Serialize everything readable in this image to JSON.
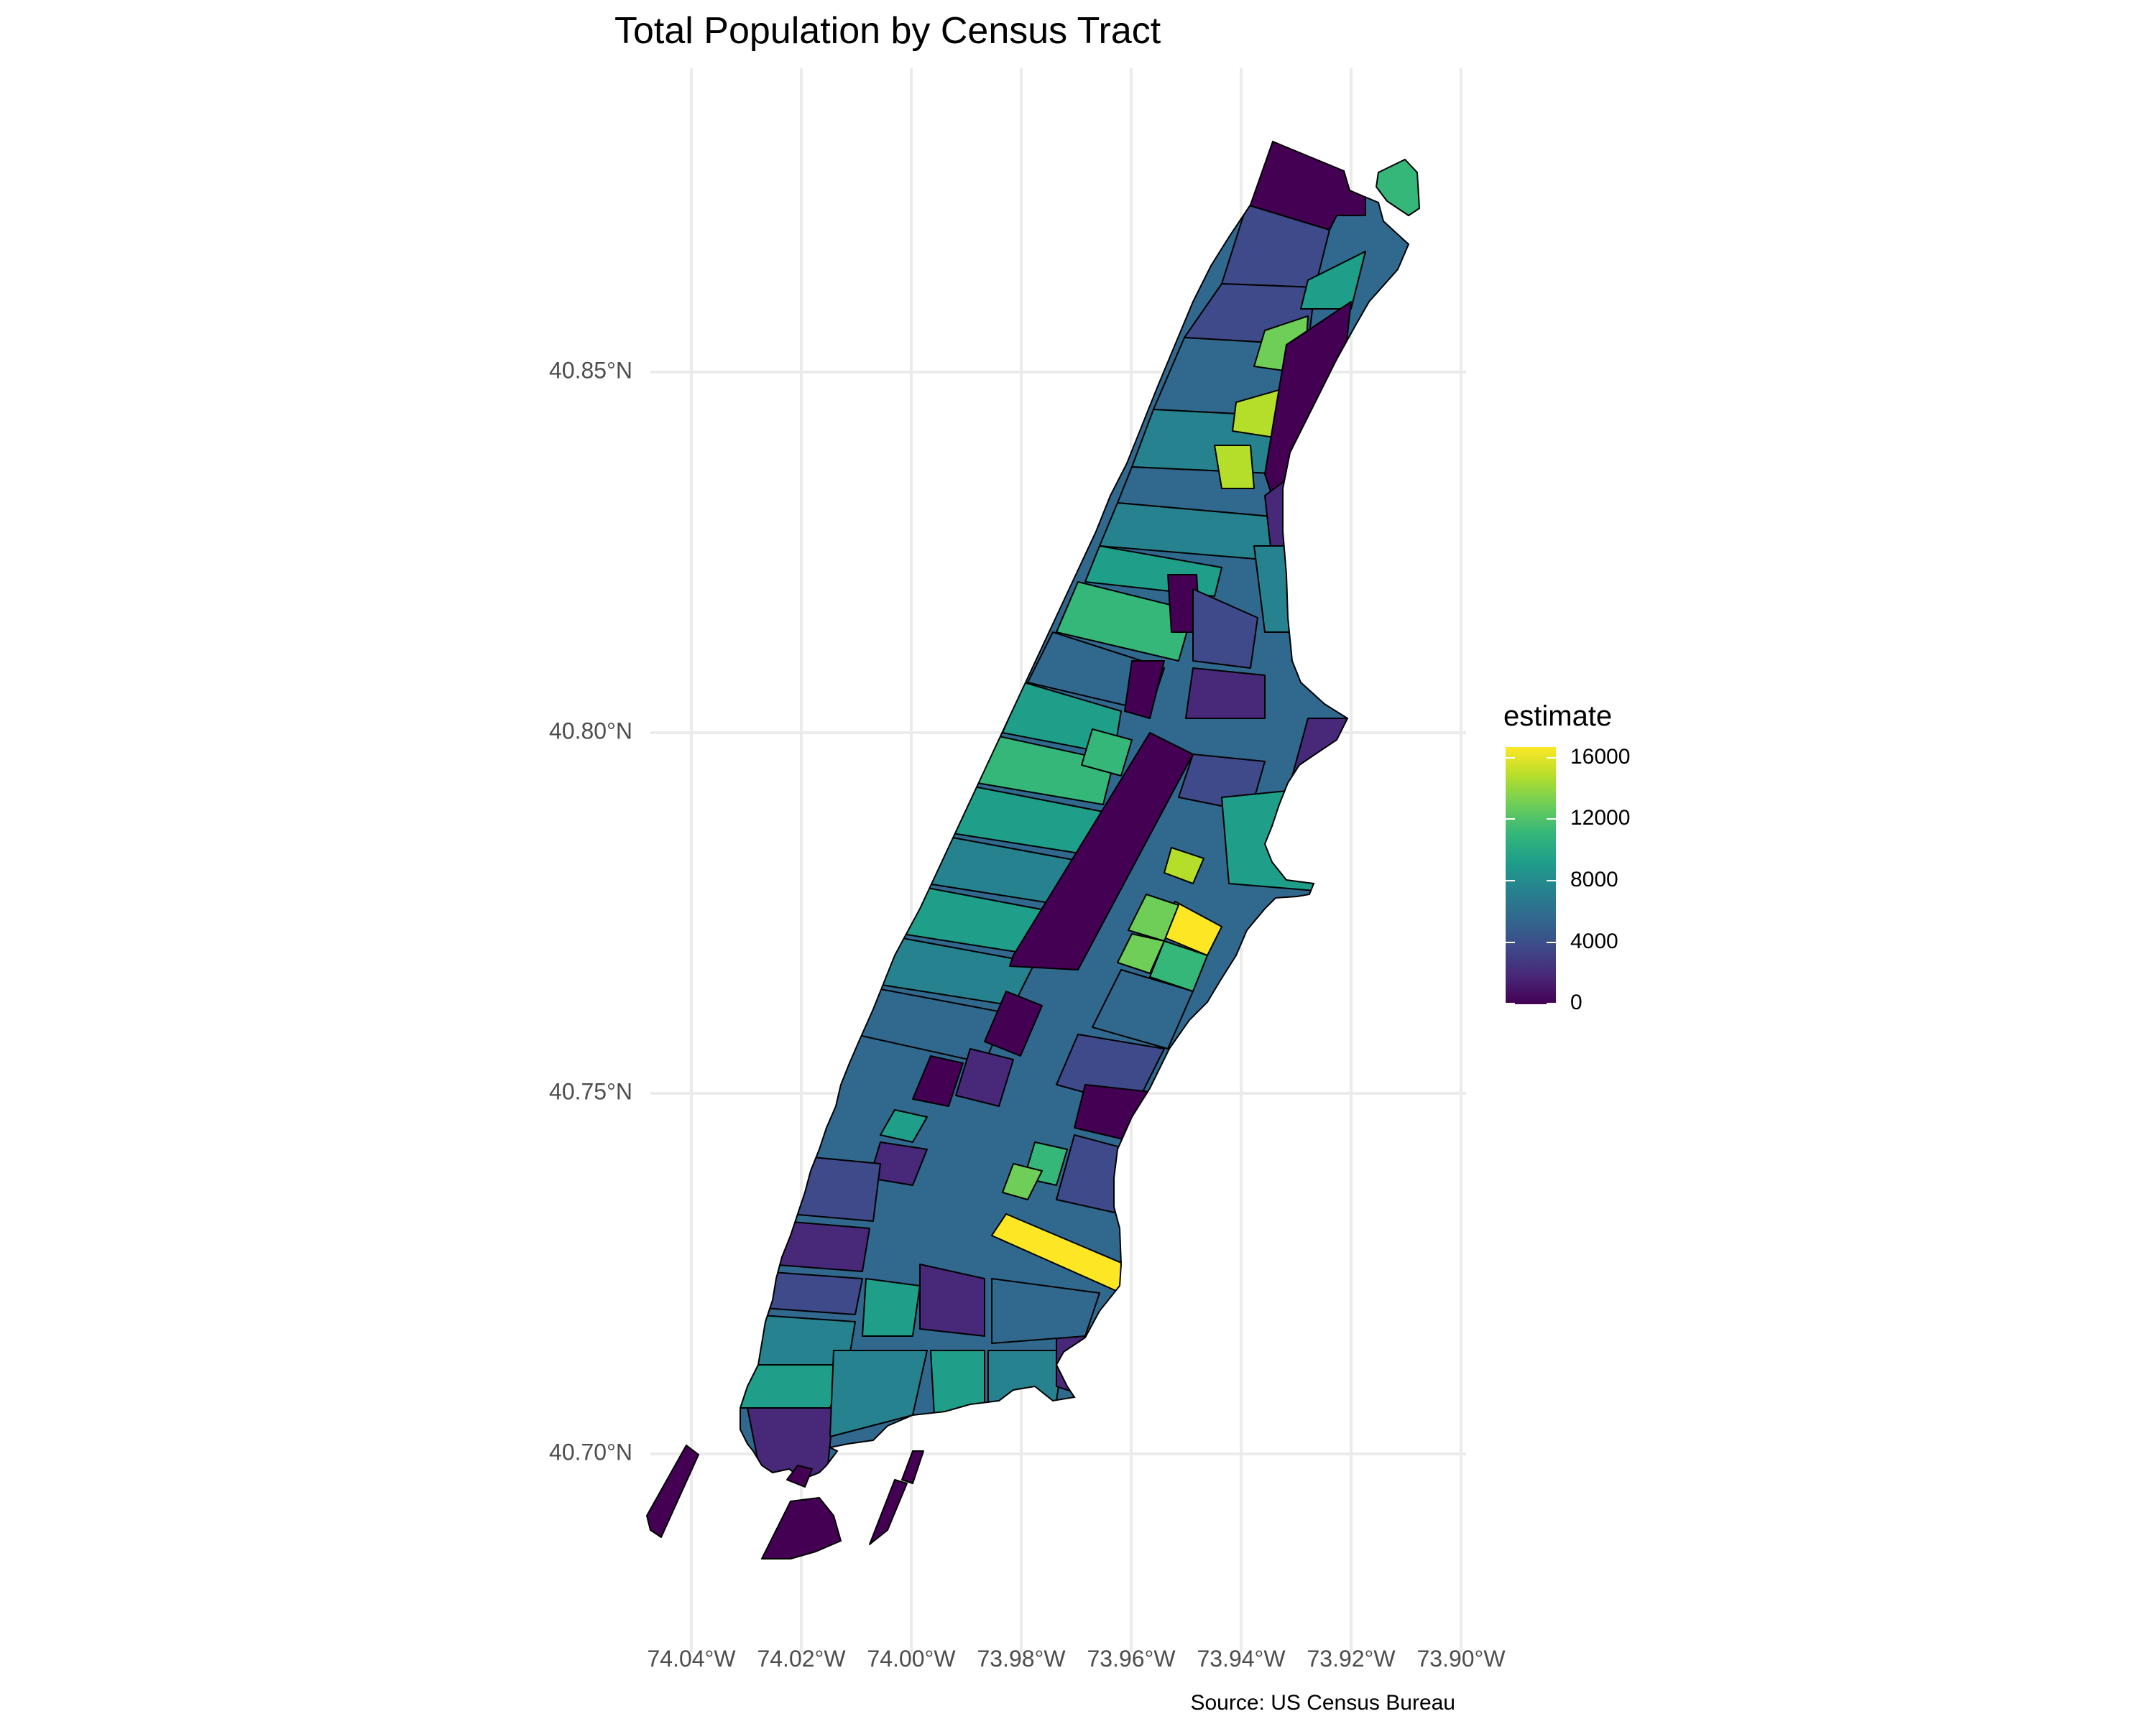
{
  "title": "Total Population by Census Tract",
  "caption": "Source: US Census Bureau",
  "axes": {
    "x_ticks": [
      "74.04°W",
      "74.02°W",
      "74.00°W",
      "73.98°W",
      "73.96°W",
      "73.94°W",
      "73.92°W",
      "73.90°W"
    ],
    "x_values": [
      -74.04,
      -74.02,
      -74.0,
      -73.98,
      -73.96,
      -73.94,
      -73.92,
      -73.9
    ],
    "y_ticks": [
      "40.85°N",
      "40.80°N",
      "40.75°N",
      "40.70°N"
    ],
    "y_values": [
      40.85,
      40.8,
      40.75,
      40.7
    ]
  },
  "legend": {
    "title": "estimate",
    "labels": [
      "16000",
      "12000",
      "8000",
      "4000",
      "0"
    ],
    "values": [
      16000,
      12000,
      8000,
      4000,
      0
    ],
    "range": [
      0,
      16800
    ],
    "palette": "viridis",
    "placement": "right"
  },
  "colors": {
    "v0": "#440154",
    "v1": "#482878",
    "v2": "#3e4a89",
    "v3": "#31688e",
    "v4": "#26828e",
    "v5": "#1f9e89",
    "v6": "#35b779",
    "v7": "#6ece58",
    "v8": "#b5de2b",
    "v9": "#fde725"
  }
}
